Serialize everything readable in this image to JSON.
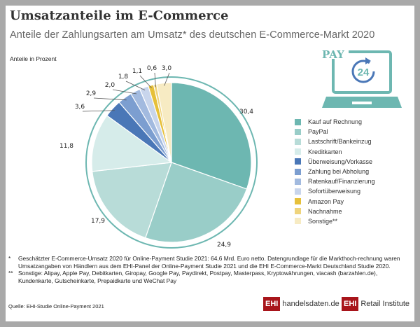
{
  "header": {
    "title": "Umsatzanteile im E-Commerce",
    "subtitle": "Anteile der Zahlungsarten am Umsatz* des deutschen E-Commerce-Markt 2020"
  },
  "chart_data": {
    "type": "pie",
    "unit_label": "Anteile in Prozent",
    "legend_placement": "right",
    "categories": [
      "Kauf auf Rechnung",
      "PayPal",
      "Lastschrift/Bankeinzug",
      "Kreditkarten",
      "Überweisung/Vorkasse",
      "Zahlung bei Abholung",
      "Ratenkauf/Finanzierung",
      "Sofortüberweisung",
      "Amazon Pay",
      "Nachnahme",
      "Sonstige**"
    ],
    "values": [
      30.4,
      24.9,
      17.9,
      11.8,
      3.6,
      2.9,
      2.0,
      1.8,
      1.1,
      0.6,
      3.0
    ],
    "value_labels": [
      "30,4",
      "24,9",
      "17,9",
      "11,8",
      "3,6",
      "2,9",
      "2,0",
      "1,8",
      "1,1",
      "0,6",
      "3,0"
    ],
    "colors": [
      "#6db7b1",
      "#99cdc8",
      "#b8dcd8",
      "#d6ecea",
      "#4a77b7",
      "#7c9ed0",
      "#a2badf",
      "#c8d5ec",
      "#e6c03a",
      "#efd47c",
      "#f7ebc3"
    ]
  },
  "icon": {
    "name": "pay-24-laptop-icon",
    "text": "PAY",
    "badge": "24"
  },
  "footnotes": [
    {
      "marker": "*",
      "text": "Geschätzter E-Commerce-Umsatz 2020 für Online-Payment Studie 2021: 64,6 Mrd. Euro netto. Datengrundlage für die Markthoch-rechnung waren Umsatzangaben von Händlern aus dem EHI-Panel der Online-Payment Studie 2021 und die EHI E-Commerce-Markt Deutschland Studie 2020."
    },
    {
      "marker": "**",
      "text": "Sonstige: Alipay, Apple Pay, Debitkarten, Giropay, Google Pay, Paydirekt, Postpay, Masterpass, Kryptowährungen, viacash (barzahlen.de), Kundenkarte, Gutscheinkarte, Prepaidkarte und WeChat Pay"
    }
  ],
  "source": "Quelle: EHI-Studie Online-Payment 2021",
  "logos": [
    {
      "mark": "EHI",
      "text": "handelsdaten.de"
    },
    {
      "mark": "EHI",
      "text": "Retail Institute"
    }
  ]
}
